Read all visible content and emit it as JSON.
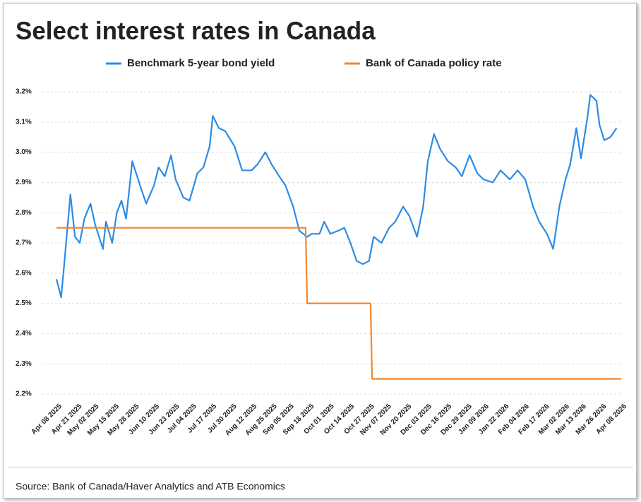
{
  "chart_data": {
    "type": "line",
    "title": "Select interest rates in Canada",
    "source": "Source: Bank of Canada/Haver Analytics and ATB Economics",
    "xlim": [
      "2025-04-08",
      "2026-04-08"
    ],
    "xticks": [
      {
        "value": "2025-04-08",
        "label": "Apr 08 2025"
      },
      {
        "value": "2025-04-21",
        "label": "Apr 21 2025"
      },
      {
        "value": "2025-05-02",
        "label": "May 02 2025"
      },
      {
        "value": "2025-05-15",
        "label": "May 15 2025"
      },
      {
        "value": "2025-05-28",
        "label": "May 28 2025"
      },
      {
        "value": "2025-06-10",
        "label": "Jun 10 2025"
      },
      {
        "value": "2025-06-23",
        "label": "Jun 23 2025"
      },
      {
        "value": "2025-07-04",
        "label": "Jul 04 2025"
      },
      {
        "value": "2025-07-17",
        "label": "Jul 17 2025"
      },
      {
        "value": "2025-07-30",
        "label": "Jul 30 2025"
      },
      {
        "value": "2025-08-12",
        "label": "Aug 12 2025"
      },
      {
        "value": "2025-08-25",
        "label": "Aug 25 2025"
      },
      {
        "value": "2025-09-05",
        "label": "Sep 05 2025"
      },
      {
        "value": "2025-09-18",
        "label": "Sep 18 2025"
      },
      {
        "value": "2025-10-01",
        "label": "Oct 01 2025"
      },
      {
        "value": "2025-10-14",
        "label": "Oct 14 2025"
      },
      {
        "value": "2025-10-27",
        "label": "Oct 27 2025"
      },
      {
        "value": "2025-11-07",
        "label": "Nov 07 2025"
      },
      {
        "value": "2025-11-20",
        "label": "Nov 20 2025"
      },
      {
        "value": "2025-12-03",
        "label": "Dec 03 2025"
      },
      {
        "value": "2025-12-16",
        "label": "Dec 16 2025"
      },
      {
        "value": "2025-12-29",
        "label": "Dec 29 2025"
      },
      {
        "value": "2026-01-09",
        "label": "Jan 09 2026"
      },
      {
        "value": "2026-01-22",
        "label": "Jan 22 2026"
      },
      {
        "value": "2026-02-04",
        "label": "Feb 04 2026"
      },
      {
        "value": "2026-02-17",
        "label": "Feb 17 2026"
      },
      {
        "value": "2026-03-02",
        "label": "Mar 02 2026"
      },
      {
        "value": "2026-03-13",
        "label": "Mar 13 2026"
      },
      {
        "value": "2026-03-26",
        "label": "Mar 26 2026"
      },
      {
        "value": "2026-04-08",
        "label": "Apr 08 2026"
      }
    ],
    "ylim": [
      2.2,
      3.2
    ],
    "yticks": [
      {
        "value": 2.2,
        "label": "2.2%"
      },
      {
        "value": 2.3,
        "label": "2.3%"
      },
      {
        "value": 2.4,
        "label": "2.4%"
      },
      {
        "value": 2.5,
        "label": "2.5%"
      },
      {
        "value": 2.6,
        "label": "2.6%"
      },
      {
        "value": 2.7,
        "label": "2.7%"
      },
      {
        "value": 2.8,
        "label": "2.8%"
      },
      {
        "value": 2.9,
        "label": "2.9%"
      },
      {
        "value": 3.0,
        "label": "3.0%"
      },
      {
        "value": 3.1,
        "label": "3.1%"
      },
      {
        "value": 3.2,
        "label": "3.2%"
      }
    ],
    "grid": true,
    "legend": "top",
    "series": [
      {
        "name": "Benchmark 5-year bond yield",
        "color": "#2b8ce6",
        "x": [
          "2025-04-08",
          "2025-04-11",
          "2025-04-13",
          "2025-04-17",
          "2025-04-20",
          "2025-04-23",
          "2025-04-26",
          "2025-04-30",
          "2025-05-03",
          "2025-05-08",
          "2025-05-10",
          "2025-05-14",
          "2025-05-17",
          "2025-05-20",
          "2025-05-23",
          "2025-05-27",
          "2025-06-01",
          "2025-06-05",
          "2025-06-10",
          "2025-06-13",
          "2025-06-17",
          "2025-06-21",
          "2025-06-24",
          "2025-06-29",
          "2025-07-03",
          "2025-07-08",
          "2025-07-12",
          "2025-07-16",
          "2025-07-18",
          "2025-07-22",
          "2025-07-26",
          "2025-08-01",
          "2025-08-06",
          "2025-08-12",
          "2025-08-16",
          "2025-08-21",
          "2025-08-25",
          "2025-08-30",
          "2025-09-03",
          "2025-09-08",
          "2025-09-12",
          "2025-09-17",
          "2025-09-20",
          "2025-09-25",
          "2025-09-28",
          "2025-10-02",
          "2025-10-07",
          "2025-10-11",
          "2025-10-15",
          "2025-10-19",
          "2025-10-23",
          "2025-10-27",
          "2025-10-30",
          "2025-11-04",
          "2025-11-09",
          "2025-11-13",
          "2025-11-18",
          "2025-11-22",
          "2025-11-27",
          "2025-12-01",
          "2025-12-04",
          "2025-12-08",
          "2025-12-12",
          "2025-12-17",
          "2025-12-22",
          "2025-12-26",
          "2025-12-31",
          "2026-01-05",
          "2026-01-09",
          "2026-01-15",
          "2026-01-20",
          "2026-01-26",
          "2026-01-31",
          "2026-02-05",
          "2026-02-10",
          "2026-02-14",
          "2026-02-19",
          "2026-02-23",
          "2026-02-27",
          "2026-03-03",
          "2026-03-06",
          "2026-03-10",
          "2026-03-13",
          "2026-03-17",
          "2026-03-19",
          "2026-03-23",
          "2026-03-25",
          "2026-03-28",
          "2026-04-01",
          "2026-04-05"
        ],
        "values": [
          2.58,
          2.52,
          2.63,
          2.86,
          2.72,
          2.7,
          2.78,
          2.83,
          2.76,
          2.68,
          2.77,
          2.7,
          2.8,
          2.84,
          2.78,
          2.97,
          2.89,
          2.83,
          2.89,
          2.95,
          2.92,
          2.99,
          2.91,
          2.85,
          2.84,
          2.93,
          2.95,
          3.02,
          3.12,
          3.08,
          3.07,
          3.02,
          2.94,
          2.94,
          2.96,
          3.0,
          2.96,
          2.92,
          2.89,
          2.82,
          2.74,
          2.72,
          2.73,
          2.73,
          2.77,
          2.73,
          2.74,
          2.75,
          2.7,
          2.64,
          2.63,
          2.64,
          2.72,
          2.7,
          2.75,
          2.77,
          2.82,
          2.79,
          2.72,
          2.82,
          2.97,
          3.06,
          3.01,
          2.97,
          2.95,
          2.92,
          2.99,
          2.93,
          2.91,
          2.9,
          2.94,
          2.91,
          2.94,
          2.91,
          2.82,
          2.77,
          2.73,
          2.68,
          2.82,
          2.91,
          2.96,
          3.08,
          2.98,
          3.11,
          3.19,
          3.17,
          3.09,
          3.04,
          3.05,
          3.08
        ]
      },
      {
        "name": "Bank of Canada policy rate",
        "color": "#f5862b",
        "x": [
          "2025-04-08",
          "2025-09-16",
          "2025-09-17",
          "2025-10-28",
          "2025-10-29",
          "2026-04-08"
        ],
        "values": [
          2.75,
          2.75,
          2.5,
          2.5,
          2.25,
          2.25
        ]
      }
    ]
  }
}
